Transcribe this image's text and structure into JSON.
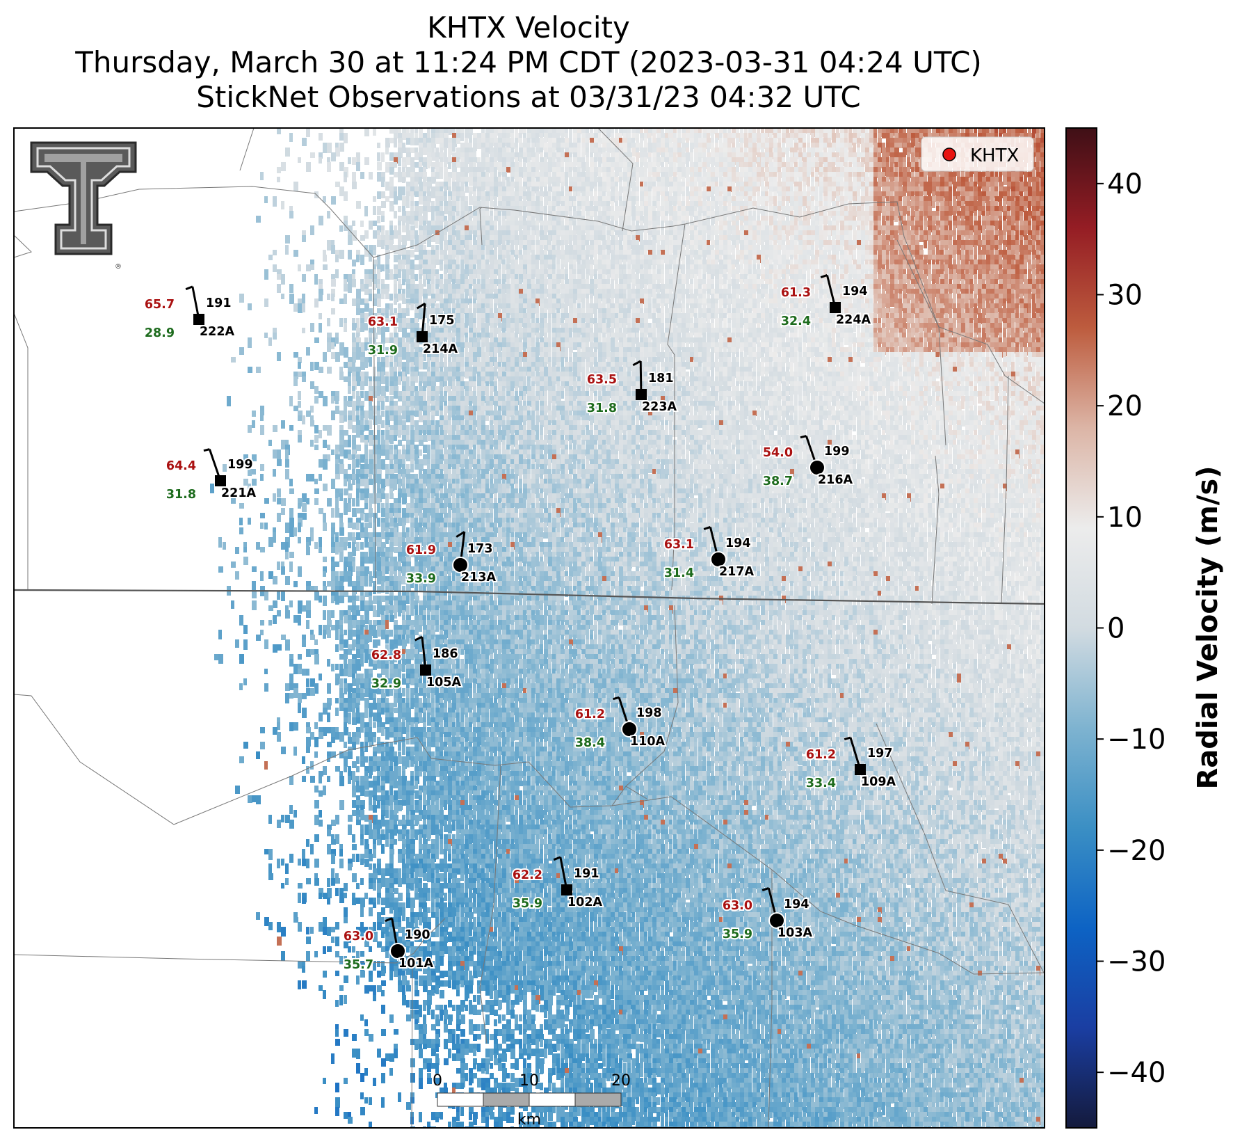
{
  "title": {
    "line1": "KHTX Velocity",
    "line2": "Thursday, March 30 at 11:24 PM CDT (2023-03-31 04:24 UTC)",
    "line3": "StickNet Observations at 03/31/23 04:32 UTC"
  },
  "legend": {
    "label": "KHTX",
    "marker_color": "#e8130f"
  },
  "colorbar": {
    "label": "Radial Velocity (m/s)",
    "min": -45,
    "max": 45,
    "ticks": [
      "40",
      "30",
      "20",
      "10",
      "0",
      "−10",
      "−20",
      "−30",
      "−40"
    ],
    "tick_values": [
      40,
      30,
      20,
      10,
      0,
      -10,
      -20,
      -30,
      -40
    ],
    "colors": [
      "#141a3c",
      "#1a3ea2",
      "#0d63c4",
      "#3b8fc4",
      "#7eb3d0",
      "#d2dbe1",
      "#ececec",
      "#dcb5a6",
      "#bd5c3e",
      "#951d24",
      "#3f0f16"
    ]
  },
  "scale_bar": {
    "labels": [
      "0",
      "10",
      "20"
    ],
    "unit": "km"
  },
  "logo": {
    "name": "Texas Tech double-T logo"
  },
  "stations": [
    {
      "id": "222A",
      "temp": "65.7",
      "dew": "28.9",
      "dir": "191",
      "marker": "square"
    },
    {
      "id": "214A",
      "temp": "63.1",
      "dew": "31.9",
      "dir": "175",
      "marker": "square"
    },
    {
      "id": "224A",
      "temp": "61.3",
      "dew": "32.4",
      "dir": "194",
      "marker": "square"
    },
    {
      "id": "223A",
      "temp": "63.5",
      "dew": "31.8",
      "dir": "181",
      "marker": "square"
    },
    {
      "id": "221A",
      "temp": "64.4",
      "dew": "31.8",
      "dir": "199",
      "marker": "square"
    },
    {
      "id": "216A",
      "temp": "54.0",
      "dew": "38.7",
      "dir": "199",
      "marker": "circle"
    },
    {
      "id": "213A",
      "temp": "61.9",
      "dew": "33.9",
      "dir": "173",
      "marker": "circle"
    },
    {
      "id": "217A",
      "temp": "63.1",
      "dew": "31.4",
      "dir": "194",
      "marker": "circle"
    },
    {
      "id": "105A",
      "temp": "62.8",
      "dew": "32.9",
      "dir": "186",
      "marker": "square"
    },
    {
      "id": "110A",
      "temp": "61.2",
      "dew": "38.4",
      "dir": "198",
      "marker": "circle"
    },
    {
      "id": "109A",
      "temp": "61.2",
      "dew": "33.4",
      "dir": "197",
      "marker": "square"
    },
    {
      "id": "102A",
      "temp": "62.2",
      "dew": "35.9",
      "dir": "191",
      "marker": "square"
    },
    {
      "id": "103A",
      "temp": "63.0",
      "dew": "35.9",
      "dir": "194",
      "marker": "circle"
    },
    {
      "id": "101A",
      "temp": "63.0",
      "dew": "35.7",
      "dir": "190",
      "marker": "circle"
    }
  ]
}
